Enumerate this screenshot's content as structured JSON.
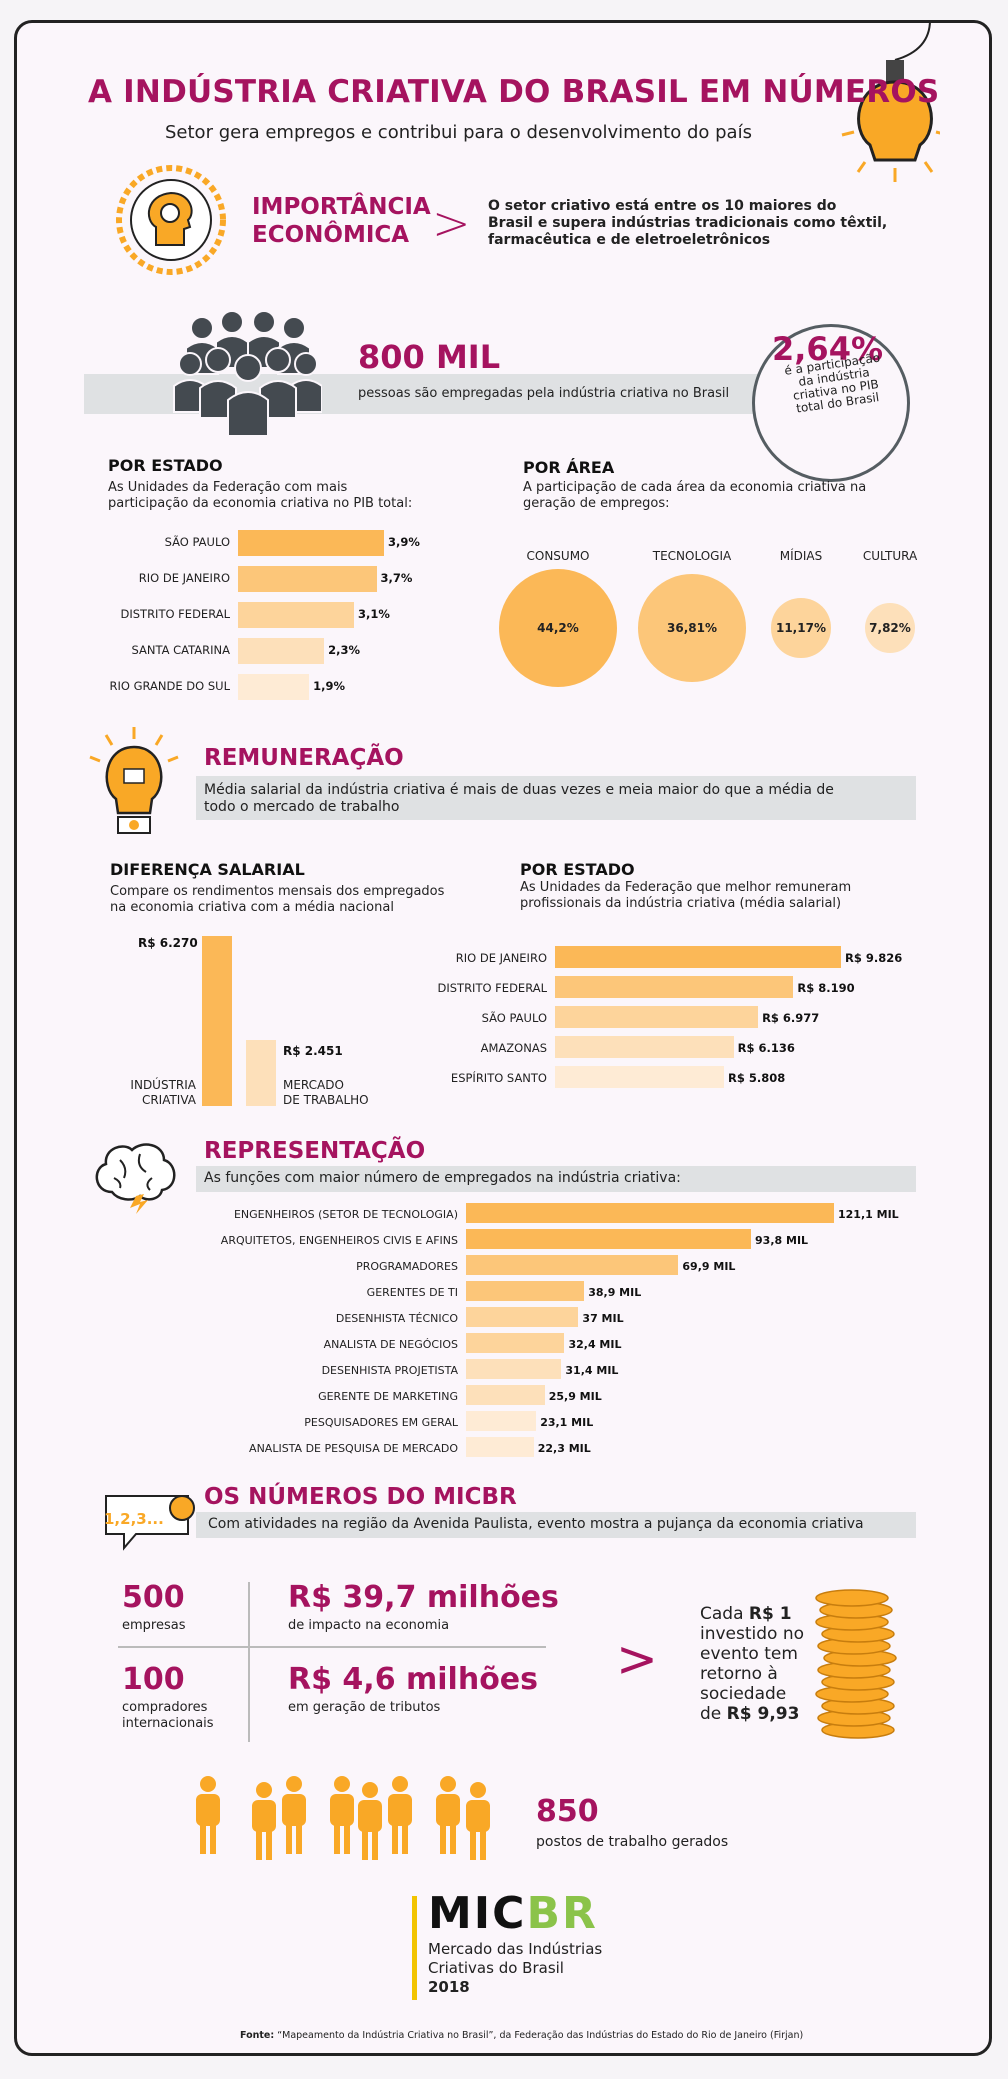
{
  "header": {
    "title": "A INDÚSTRIA CRIATIVA DO BRASIL EM NÚMEROS",
    "subtitle": "Setor gera empregos e contribui para o desenvolvimento do país"
  },
  "importancia": {
    "title_line1": "IMPORTÂNCIA",
    "title_line2": "ECONÔMICA",
    "arrow": ">",
    "text_line1": "O setor criativo está entre os 10 maiores do",
    "text_line2": "Brasil e supera indústrias tradicionais como têxtil,",
    "text_line3": "farmacêutica e de eletroeletrônicos"
  },
  "empregos": {
    "number": "800 MIL",
    "text": "pessoas são empregadas pela indústria criativa no Brasil",
    "pib_percent": "2,64%",
    "pib_line1": "é a participação",
    "pib_line2": "da indústria",
    "pib_line3": "criativa no PIB",
    "pib_line4": "total do Brasil"
  },
  "pib_estado": {
    "title": "POR ESTADO",
    "desc_line1": "As Unidades da Federação com mais",
    "desc_line2": "participação da economia criativa no PIB total:"
  },
  "area": {
    "title": "POR ÁREA",
    "desc_line1": "A participação de cada área da economia criativa na",
    "desc_line2": "geração de empregos:"
  },
  "remuneracao": {
    "title": "REMUNERAÇÃO",
    "text_line1": "Média salarial da indústria criativa é mais de duas vezes e meia maior do que a média de",
    "text_line2": "todo o mercado de trabalho"
  },
  "diferenca": {
    "title": "DIFERENÇA SALARIAL",
    "desc_line1": "Compare os rendimentos mensais dos empregados",
    "desc_line2": "na economia criativa com a média nacional"
  },
  "salario_estado": {
    "title": "POR ESTADO",
    "desc_line1": "As Unidades da Federação que melhor remuneram",
    "desc_line2": "profissionais da indústria criativa (média salarial)"
  },
  "representacao": {
    "title": "REPRESENTAÇÃO",
    "text": "As funções com maior número de empregados na indústria criativa:"
  },
  "micbr": {
    "title": "OS NÚMEROS DO MICBR",
    "icon_text": "1,2,3...",
    "text": "Com atividades na região da Avenida Paulista, evento mostra a pujança da economia criativa",
    "stat1_num": "500",
    "stat1_label": "empresas",
    "stat2_num": "R$ 39,7 milhões",
    "stat2_label": "de impacto na economia",
    "stat3_num": "100",
    "stat3_label_line1": "compradores",
    "stat3_label_line2": "internacionais",
    "stat4_num": "R$ 4,6 milhões",
    "stat4_label": "em geração de tributos",
    "arrow": ">",
    "return_line1_a": "Cada ",
    "return_line1_b": "R$ 1",
    "return_line2": "investido no",
    "return_line3": "evento tem",
    "return_line4": "retorno à",
    "return_line5": "sociedade",
    "return_line6_a": "de ",
    "return_line6_b": "R$ 9,93",
    "jobs_num": "850",
    "jobs_label": "postos de trabalho gerados"
  },
  "logo": {
    "mic": "MIC",
    "br": "BR",
    "line1": "Mercado das Indústrias",
    "line2": "Criativas do Brasil",
    "year": "2018"
  },
  "footer": {
    "label": "Fonte:",
    "text": " “Mapeamento da Indústria Criativa no Brasil”, da Federação das Indústrias do Estado do Rio de Janeiro (Firjan)"
  },
  "colors": {
    "accent": "#a5135f",
    "bar1": "#fbb857",
    "bar2": "#fcc679",
    "bar3": "#fdd49b",
    "bar4": "#fde0ba",
    "bar5": "#feebd5",
    "band": "#dfe1e3"
  },
  "chart_data": [
    {
      "type": "bar",
      "orientation": "horizontal",
      "title": "POR ESTADO",
      "categories": [
        "SÃO PAULO",
        "RIO DE JANEIRO",
        "DISTRITO FEDERAL",
        "SANTA CATARINA",
        "RIO GRANDE DO SUL"
      ],
      "values": [
        3.9,
        3.7,
        3.1,
        2.3,
        1.9
      ],
      "value_labels": [
        "3,9%",
        "3,7%",
        "3,1%",
        "2,3%",
        "1,9%"
      ]
    },
    {
      "type": "bubble",
      "title": "POR ÁREA",
      "categories": [
        "CONSUMO",
        "TECNOLOGIA",
        "MÍDIAS",
        "CULTURA"
      ],
      "values": [
        44.2,
        36.81,
        11.17,
        7.82
      ],
      "value_labels": [
        "44,2%",
        "36,81%",
        "11,17%",
        "7,82%"
      ]
    },
    {
      "type": "bar",
      "orientation": "vertical",
      "title": "DIFERENÇA SALARIAL",
      "categories": [
        "INDÚSTRIA CRIATIVA",
        "MERCADO DE TRABALHO"
      ],
      "label_lines": [
        [
          "INDÚSTRIA",
          "CRIATIVA"
        ],
        [
          "MERCADO",
          "DE TRABALHO"
        ]
      ],
      "values": [
        6270,
        2451
      ],
      "value_labels": [
        "R$ 6.270",
        "R$ 2.451"
      ]
    },
    {
      "type": "bar",
      "orientation": "horizontal",
      "title": "POR ESTADO",
      "categories": [
        "RIO DE JANEIRO",
        "DISTRITO FEDERAL",
        "SÃO PAULO",
        "AMAZONAS",
        "ESPÍRITO SANTO"
      ],
      "values": [
        9826,
        8190,
        6977,
        6136,
        5808
      ],
      "value_labels": [
        "R$ 9.826",
        "R$ 8.190",
        "R$ 6.977",
        "R$ 6.136",
        "R$ 5.808"
      ]
    },
    {
      "type": "bar",
      "orientation": "horizontal",
      "title": "REPRESENTAÇÃO",
      "categories": [
        "ENGENHEIROS (SETOR DE TECNOLOGIA)",
        "ARQUITETOS, ENGENHEIROS CIVIS E AFINS",
        "PROGRAMADORES",
        "GERENTES DE TI",
        "DESENHISTA TÉCNICO",
        "ANALISTA DE NEGÓCIOS",
        "DESENHISTA PROJETISTA",
        "GERENTE DE MARKETING",
        "PESQUISADORES EM GERAL",
        "ANALISTA DE PESQUISA DE MERCADO"
      ],
      "values": [
        121.1,
        93.8,
        69.9,
        38.9,
        37,
        32.4,
        31.4,
        25.9,
        23.1,
        22.3
      ],
      "value_labels": [
        "121,1 MIL",
        "93,8 MIL",
        "69,9 MIL",
        "38,9 MIL",
        "37 MIL",
        "32,4 MIL",
        "31,4 MIL",
        "25,9 MIL",
        "23,1 MIL",
        "22,3 MIL"
      ]
    }
  ]
}
